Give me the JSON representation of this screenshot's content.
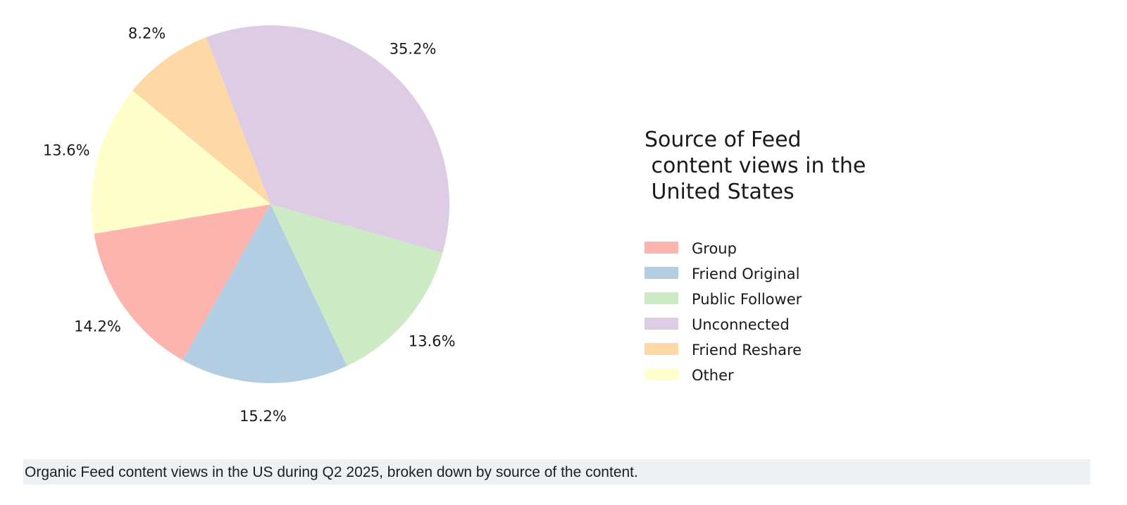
{
  "chart_data": {
    "type": "pie",
    "title": "Source of Feed\n content views in the\n United States",
    "title_lines": [
      "Source of Feed",
      " content views in the",
      " United States"
    ],
    "categories": [
      "Group",
      "Friend Original",
      "Public Follower",
      "Unconnected",
      "Friend Reshare",
      "Other"
    ],
    "values": [
      14.2,
      15.2,
      13.6,
      35.2,
      8.2,
      13.6
    ],
    "labels": [
      "14.2%",
      "15.2%",
      "13.6%",
      "35.2%",
      "8.2%",
      "13.6%"
    ],
    "colors": [
      "#fbb4ae",
      "#b3cde3",
      "#ccebc5",
      "#decbe4",
      "#fed9a6",
      "#ffffcc"
    ],
    "start_angle_deg": 189.5,
    "direction": "counterclockwise",
    "legend_placement": "right"
  },
  "caption": "Organic Feed content views in the US during Q2 2025, broken down by source of the content."
}
